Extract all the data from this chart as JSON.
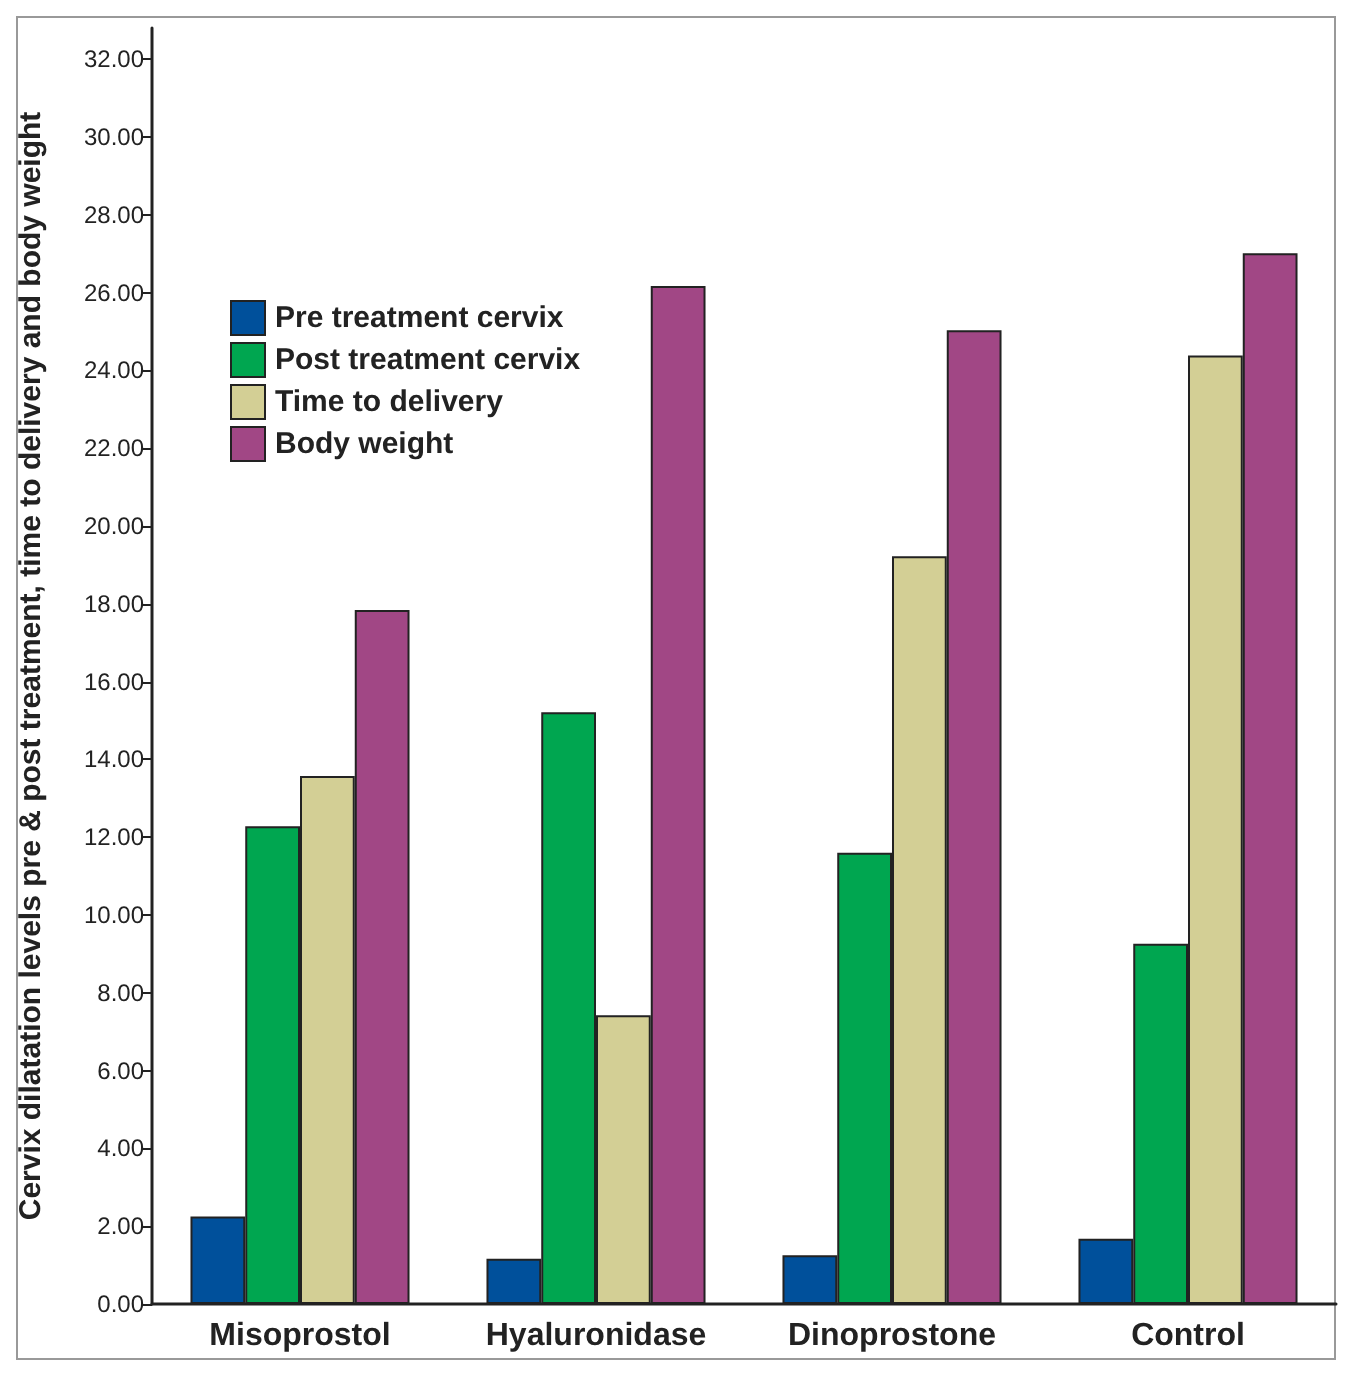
{
  "chart_data": {
    "type": "bar",
    "ylabel": "Cervix dilatation levels pre & post treatment, time to delivery and body weight",
    "categories": [
      "Misoprostol",
      "Hyaluronidase",
      "Dinoprostone",
      "Control"
    ],
    "series": [
      {
        "name": "Pre treatment cervix",
        "color": "#00509b",
        "values": [
          2.25,
          1.16,
          1.25,
          1.68
        ]
      },
      {
        "name": "Post treatment cervix",
        "color": "#00a650",
        "values": [
          12.28,
          15.21,
          11.6,
          9.26
        ]
      },
      {
        "name": "Time to delivery",
        "color": "#d3cf95",
        "values": [
          13.57,
          7.42,
          19.22,
          24.38
        ]
      },
      {
        "name": "Body weight",
        "color": "#a14785",
        "values": [
          17.84,
          26.17,
          25.03,
          27.01
        ]
      }
    ],
    "ylim": [
      0,
      32.8
    ],
    "yticks": [
      {
        "value": 0,
        "label": "0.00"
      },
      {
        "value": 2,
        "label": "2.00"
      },
      {
        "value": 4,
        "label": "4.00"
      },
      {
        "value": 6,
        "label": "6.00"
      },
      {
        "value": 8,
        "label": "8.00"
      },
      {
        "value": 10,
        "label": "10.00"
      },
      {
        "value": 12,
        "label": "12.00"
      },
      {
        "value": 14,
        "label": "14.00"
      },
      {
        "value": 16,
        "label": "16.00"
      },
      {
        "value": 18,
        "label": "18.00"
      },
      {
        "value": 20,
        "label": "20.00"
      },
      {
        "value": 22,
        "label": "22.00"
      },
      {
        "value": 24,
        "label": "24.00"
      },
      {
        "value": 26,
        "label": "26.00"
      },
      {
        "value": 28,
        "label": "28.00"
      },
      {
        "value": 30,
        "label": "30.00"
      },
      {
        "value": 32,
        "label": "32.00"
      }
    ],
    "grid": false,
    "legend": "top left"
  }
}
